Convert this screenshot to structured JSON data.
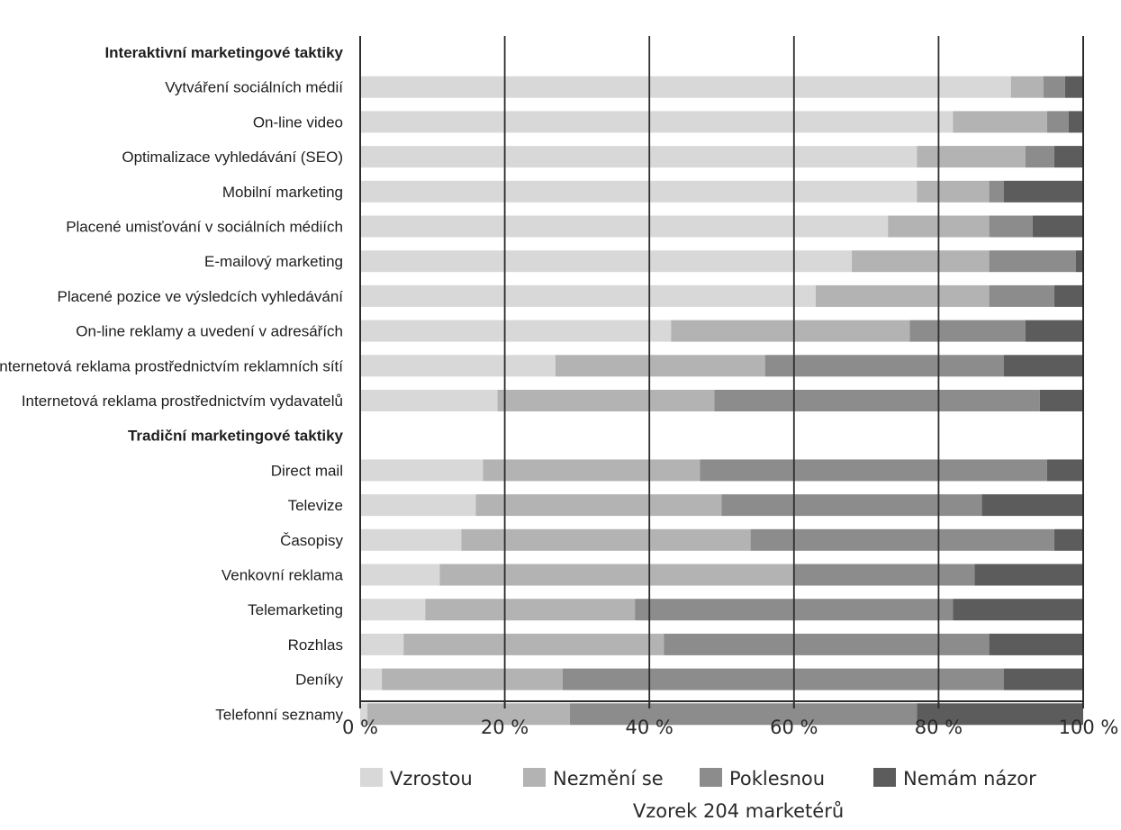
{
  "chart_data": {
    "type": "bar",
    "orientation": "horizontal",
    "stacked": true,
    "normalized_percent": true,
    "xlim": [
      0,
      100
    ],
    "x_ticks": [
      "0 %",
      "20 %",
      "40 %",
      "60 %",
      "80 %",
      "100 %"
    ],
    "grid": true,
    "legend_position": "bottom",
    "note": "Vzorek 204 marketérů",
    "series": [
      {
        "name": "Vzrostou",
        "color": "#d8d8d8"
      },
      {
        "name": "Nezmění se",
        "color": "#b3b3b3"
      },
      {
        "name": "Poklesnou",
        "color": "#8c8c8c"
      },
      {
        "name": "Nemám názor",
        "color": "#5c5c5c"
      }
    ],
    "groups": [
      {
        "label": "Interaktivní marketingové taktiky",
        "rows": [
          {
            "label": "Vytváření sociálních médií",
            "values": [
              90,
              4.5,
              3,
              2.5
            ]
          },
          {
            "label": "On-line video",
            "values": [
              82,
              13,
              3,
              2
            ]
          },
          {
            "label": "Optimalizace vyhledávání (SEO)",
            "values": [
              77,
              15,
              4,
              4
            ]
          },
          {
            "label": "Mobilní marketing",
            "values": [
              77,
              10,
              2,
              11
            ]
          },
          {
            "label": "Placené umisťování v sociálních médiích",
            "values": [
              73,
              14,
              6,
              7
            ]
          },
          {
            "label": "E-mailový marketing",
            "values": [
              68,
              19,
              12,
              1
            ]
          },
          {
            "label": "Placené pozice ve výsledcích vyhledávání",
            "values": [
              63,
              24,
              9,
              4
            ]
          },
          {
            "label": "On-line reklamy a uvedení v adresářích",
            "values": [
              43,
              33,
              16,
              8
            ]
          },
          {
            "label": "Internetová reklama prostřednictvím reklamních sítí",
            "values": [
              27,
              29,
              33,
              11
            ]
          },
          {
            "label": "Internetová reklama prostřednictvím vydavatelů",
            "values": [
              19,
              30,
              45,
              6
            ]
          }
        ]
      },
      {
        "label": "Tradiční marketingové taktiky",
        "rows": [
          {
            "label": "Direct mail",
            "values": [
              17,
              30,
              48,
              5
            ]
          },
          {
            "label": "Televize",
            "values": [
              16,
              34,
              36,
              14
            ]
          },
          {
            "label": "Časopisy",
            "values": [
              14,
              40,
              42,
              4
            ]
          },
          {
            "label": "Venkovní reklama",
            "values": [
              11,
              49,
              25,
              15
            ]
          },
          {
            "label": "Telemarketing",
            "values": [
              9,
              29,
              44,
              18
            ]
          },
          {
            "label": "Rozhlas",
            "values": [
              6,
              36,
              45,
              13
            ]
          },
          {
            "label": "Deníky",
            "values": [
              3,
              25,
              61,
              11
            ]
          },
          {
            "label": "Telefonní seznamy",
            "values": [
              1,
              28,
              48,
              23
            ]
          }
        ]
      }
    ]
  }
}
